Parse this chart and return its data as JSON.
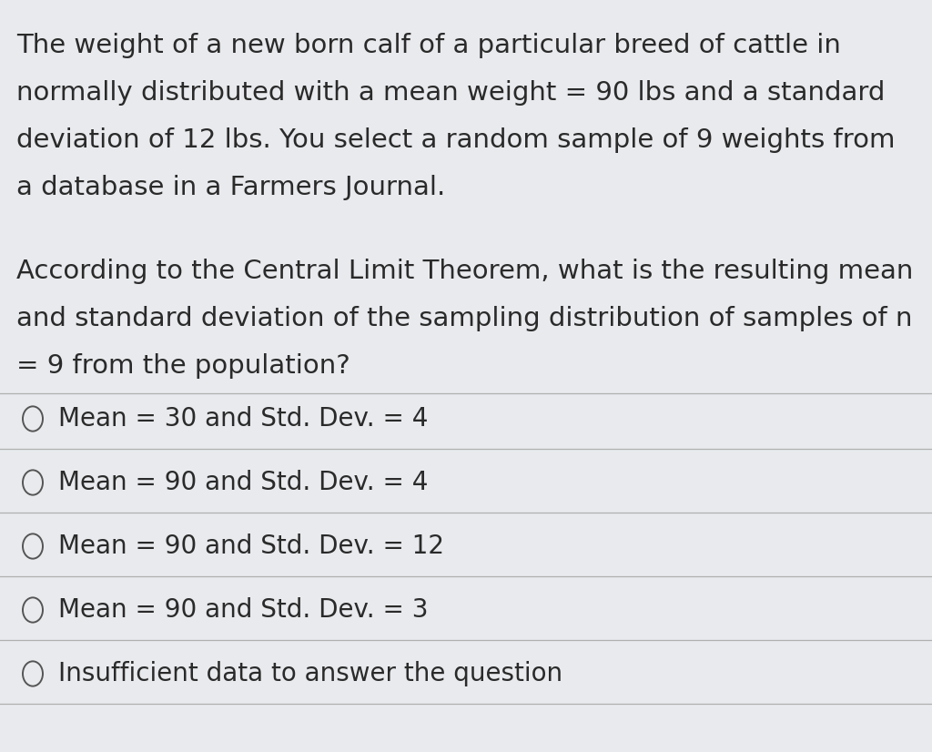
{
  "background_color": "#e8eaed",
  "text_color": "#2a2a2a",
  "paragraph1_lines": [
    "The weight of a new born calf of a particular breed of cattle in",
    "normally distributed with a mean weight = 90 lbs and a standard",
    "deviation of 12 lbs. You select a random sample of 9 weights from",
    "a database in a Farmers Journal."
  ],
  "paragraph2_lines": [
    "According to the Central Limit Theorem, what is the resulting mean",
    "and standard deviation of the sampling distribution of samples of n",
    "= 9 from the population?"
  ],
  "options": [
    "Mean = 30 and Std. Dev. = 4",
    "Mean = 90 and Std. Dev. = 4",
    "Mean = 90 and Std. Dev. = 12",
    "Mean = 90 and Std. Dev. = 3",
    "Insufficient data to answer the question"
  ],
  "font_size_paragraph": 21,
  "font_size_options": 20,
  "line_color": "#b0b0b0",
  "circle_color": "#555555"
}
